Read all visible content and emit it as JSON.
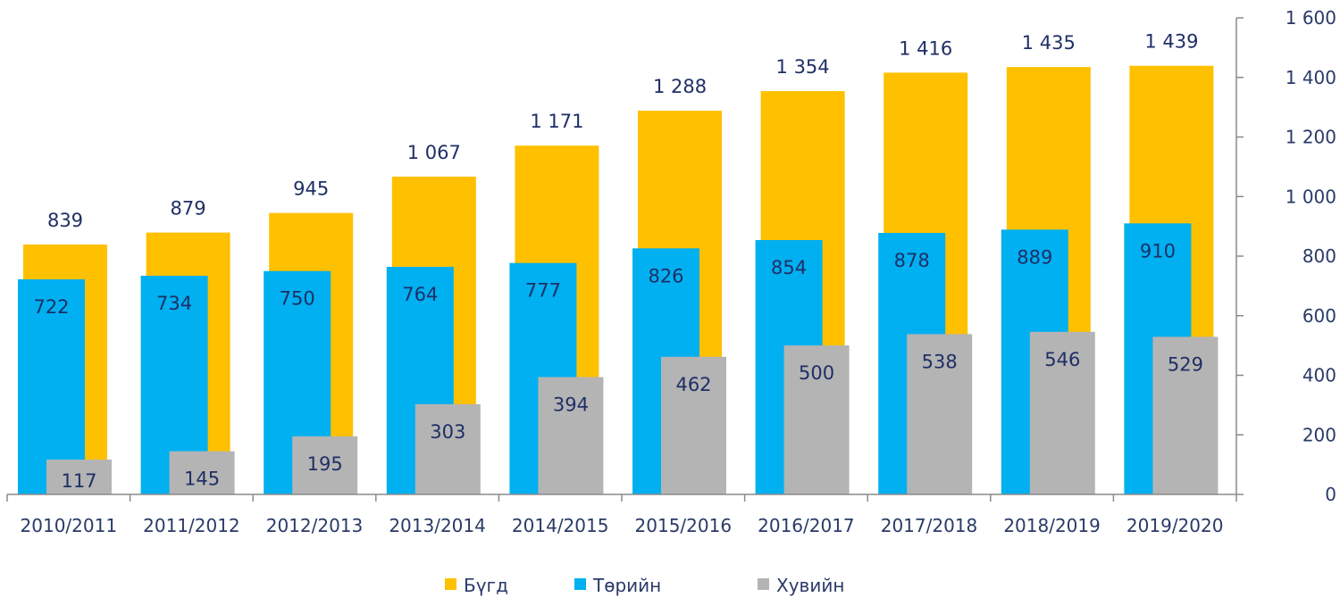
{
  "chart_data": {
    "type": "bar",
    "categories": [
      "2010/2011",
      "2011/2012",
      "2012/2013",
      "2013/2014",
      "2014/2015",
      "2015/2016",
      "2016/2017",
      "2017/2018",
      "2018/2019",
      "2019/2020"
    ],
    "series": [
      {
        "name": "Бүгд",
        "color": "#FFC000",
        "values": [
          839,
          879,
          945,
          1067,
          1171,
          1288,
          1354,
          1416,
          1435,
          1439
        ],
        "labels": [
          "839",
          "879",
          "945",
          "1 067",
          "1 171",
          "1 288",
          "1 354",
          "1 416",
          "1 435",
          "1 439"
        ]
      },
      {
        "name": "Төрийн",
        "color": "#00B0F0",
        "values": [
          722,
          734,
          750,
          764,
          777,
          826,
          854,
          878,
          889,
          910
        ],
        "labels": [
          "722",
          "734",
          "750",
          "764",
          "777",
          "826",
          "854",
          "878",
          "889",
          "910"
        ]
      },
      {
        "name": "Хувийн",
        "color": "#B4B4B4",
        "values": [
          117,
          145,
          195,
          303,
          394,
          462,
          500,
          538,
          546,
          529
        ],
        "labels": [
          "117",
          "145",
          "195",
          "303",
          "394",
          "462",
          "500",
          "538",
          "546",
          "529"
        ]
      }
    ],
    "y_axis": {
      "position": "right",
      "ylim": [
        0,
        1600
      ],
      "ticks": [
        0,
        200,
        400,
        600,
        800,
        1000,
        1200,
        1400,
        1600
      ],
      "tick_labels": [
        "0",
        "200",
        "400",
        "600",
        "800",
        "1 000",
        "1 200",
        "1 400",
        "1 600"
      ]
    },
    "grid": false,
    "legend_position": "bottom",
    "title": "",
    "xlabel": "",
    "ylabel": ""
  }
}
